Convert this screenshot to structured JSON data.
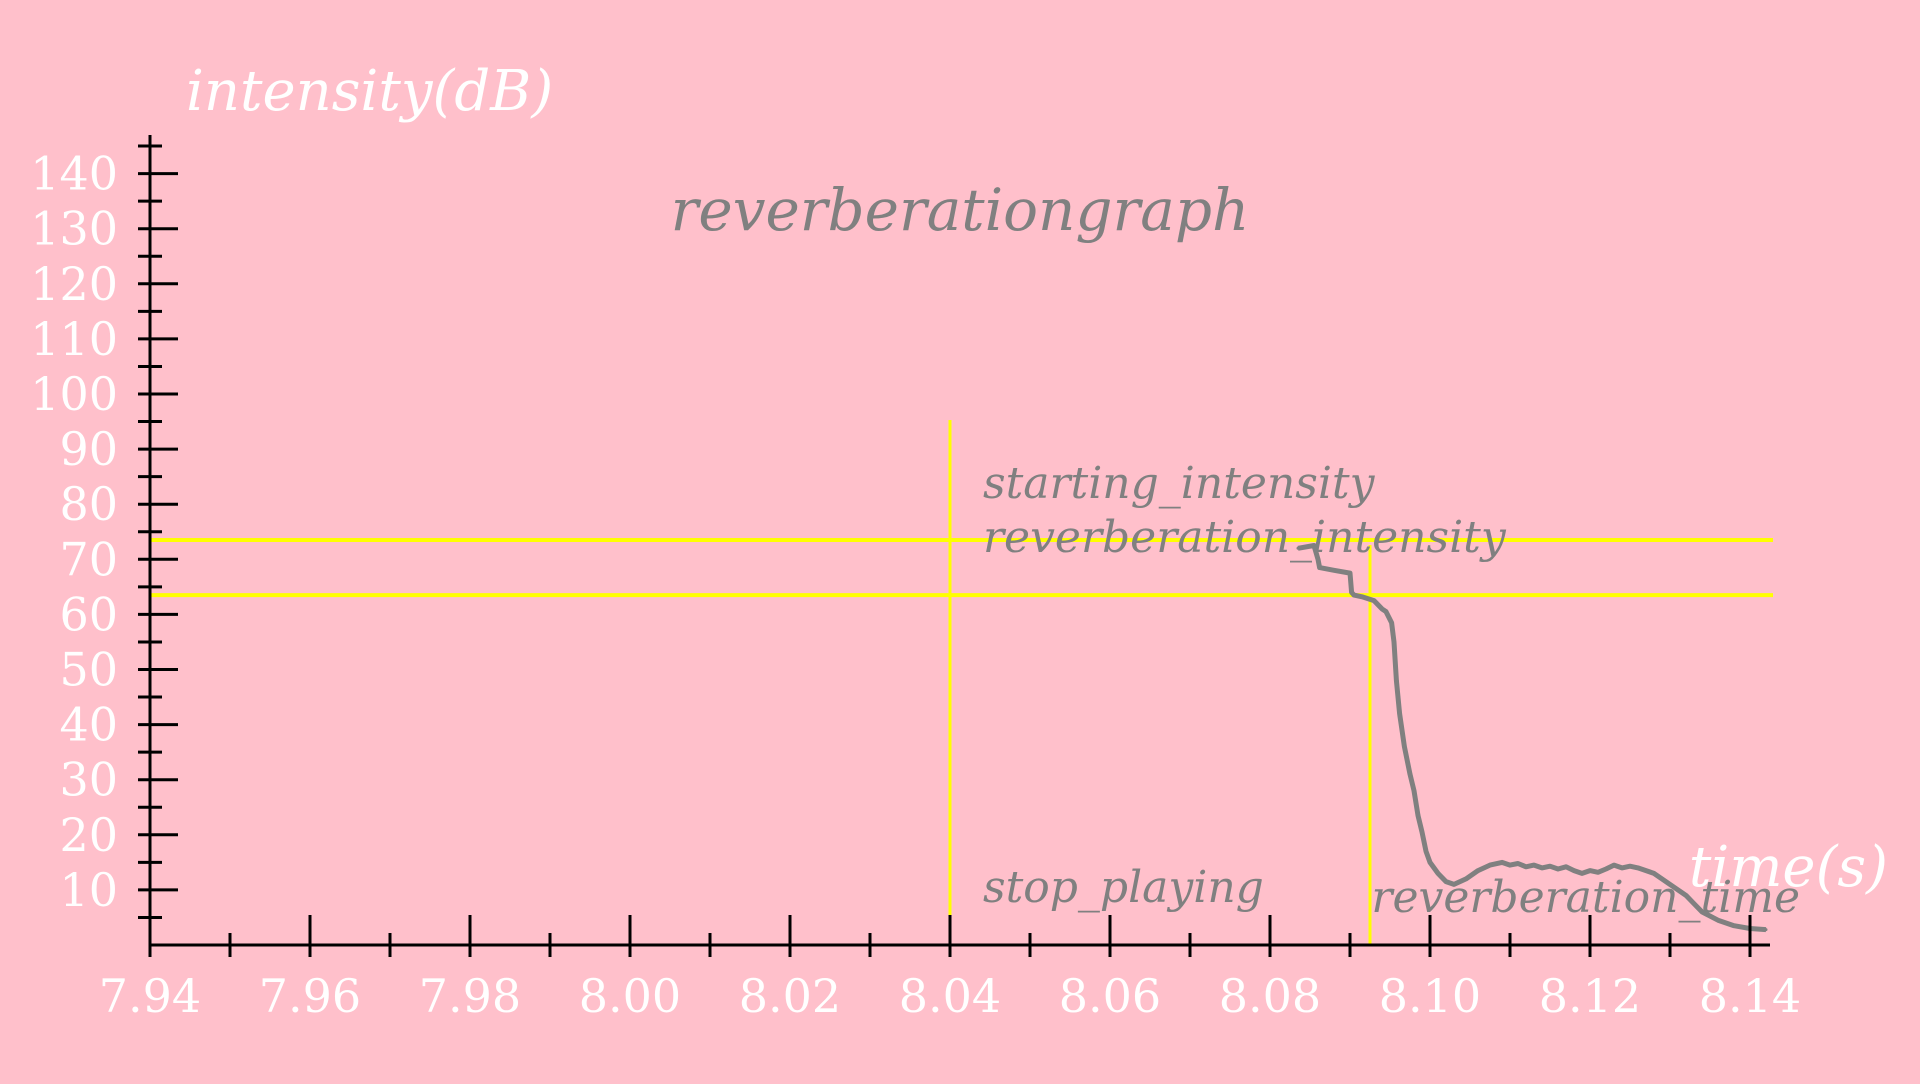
{
  "chart_data": {
    "type": "line",
    "title": "reverberationgraph",
    "xlabel": "time(s)",
    "ylabel": "intensity(dB)",
    "xlim": [
      7.94,
      8.142
    ],
    "ylim": [
      0,
      145
    ],
    "x_ticks": [
      7.94,
      7.96,
      7.98,
      8.0,
      8.02,
      8.04,
      8.06,
      8.08,
      8.1,
      8.12,
      8.14
    ],
    "x_tick_labels": [
      "7.94",
      "7.96",
      "7.98",
      "8.00",
      "8.02",
      "8.04",
      "8.06",
      "8.08",
      "8.10",
      "8.12",
      "8.14"
    ],
    "y_ticks": [
      10,
      20,
      30,
      40,
      50,
      60,
      70,
      80,
      90,
      100,
      110,
      120,
      130,
      140
    ],
    "y_tick_labels": [
      "10",
      "20",
      "30",
      "40",
      "50",
      "60",
      "70",
      "80",
      "90",
      "100",
      "110",
      "120",
      "130",
      "140"
    ],
    "grid": false,
    "colors": {
      "background": "#ffc0cb",
      "axis": "#000000",
      "tick_label": "#ffffff",
      "curve": "#808080",
      "reference_lines": "#ffff00",
      "annotation": "#808080"
    },
    "series": [
      {
        "x": [
          8.0835,
          8.0855,
          8.086,
          8.0862,
          8.088,
          8.09,
          8.0902,
          8.0905,
          8.0915,
          8.093,
          8.094,
          8.0945,
          8.0952,
          8.0955,
          8.0958,
          8.0962,
          8.0968,
          8.0975,
          8.098,
          8.0985,
          8.099,
          8.0995,
          8.1,
          8.101,
          8.102,
          8.103,
          8.1045,
          8.106,
          8.1075,
          8.109,
          8.11,
          8.111,
          8.112,
          8.113,
          8.114,
          8.115,
          8.116,
          8.117,
          8.118,
          8.119,
          8.12,
          8.121,
          8.122,
          8.123,
          8.124,
          8.125,
          8.126,
          8.127,
          8.128,
          8.129,
          8.13,
          8.131,
          8.132,
          8.133,
          8.134,
          8.136,
          8.138,
          8.14,
          8.142
        ],
        "y": [
          72.0,
          72.5,
          70.0,
          68.5,
          68.0,
          67.5,
          64.0,
          63.5,
          63.2,
          62.5,
          61.0,
          60.5,
          58.5,
          55.0,
          48.0,
          42.0,
          36.0,
          31.0,
          28.0,
          23.5,
          20.5,
          17.0,
          15.0,
          13.0,
          11.5,
          11.0,
          12.0,
          13.5,
          14.5,
          15.0,
          14.5,
          14.8,
          14.2,
          14.5,
          14.0,
          14.3,
          13.8,
          14.2,
          13.5,
          13.0,
          13.5,
          13.2,
          13.8,
          14.5,
          14.0,
          14.3,
          14.0,
          13.5,
          13.0,
          12.0,
          11.0,
          10.0,
          9.0,
          7.5,
          6.0,
          4.5,
          3.5,
          3.0,
          2.8
        ]
      }
    ],
    "reference_lines": [
      {
        "orientation": "horizontal",
        "value": 73.5,
        "label": "starting_intensity"
      },
      {
        "orientation": "horizontal",
        "value": 63.5,
        "label": "reverberation_intensity"
      },
      {
        "orientation": "vertical",
        "value": 8.04,
        "label": "stop_playing"
      },
      {
        "orientation": "vertical",
        "value": 8.0925,
        "label": "reverberation_time"
      }
    ]
  }
}
